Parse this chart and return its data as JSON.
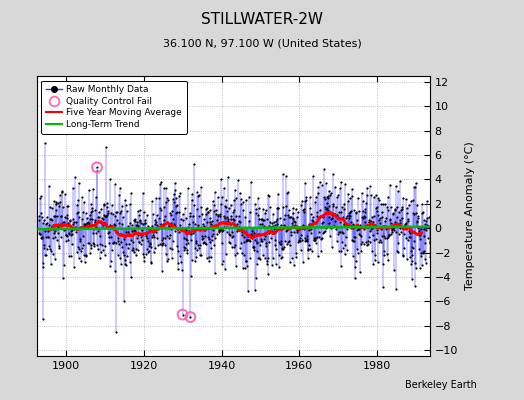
{
  "title": "STILLWATER-2W",
  "subtitle": "36.100 N, 97.100 W (United States)",
  "ylabel": "Temperature Anomaly (°C)",
  "credit": "Berkeley Earth",
  "year_start": 1893,
  "year_end": 1993,
  "ylim": [
    -10.5,
    12.5
  ],
  "yticks": [
    -10,
    -8,
    -6,
    -4,
    -2,
    0,
    2,
    4,
    6,
    8,
    10,
    12
  ],
  "xticks": [
    1900,
    1920,
    1940,
    1960,
    1980
  ],
  "bg_color": "#d8d8d8",
  "plot_bg_color": "#ffffff",
  "grid_color": "#b0b0b0",
  "raw_line_color": "#3333ff",
  "raw_dot_color": "#000000",
  "qc_fail_color": "#ff69b4",
  "moving_avg_color": "#ff0000",
  "trend_color": "#00bb00",
  "seed": 42,
  "n_months": 1212,
  "qc_fail_months": [
    180,
    444,
    468
  ],
  "qc_fail_values": [
    5.0,
    -7.1,
    -7.3
  ],
  "title_fontsize": 11,
  "subtitle_fontsize": 8,
  "tick_fontsize": 8,
  "ylabel_fontsize": 8
}
